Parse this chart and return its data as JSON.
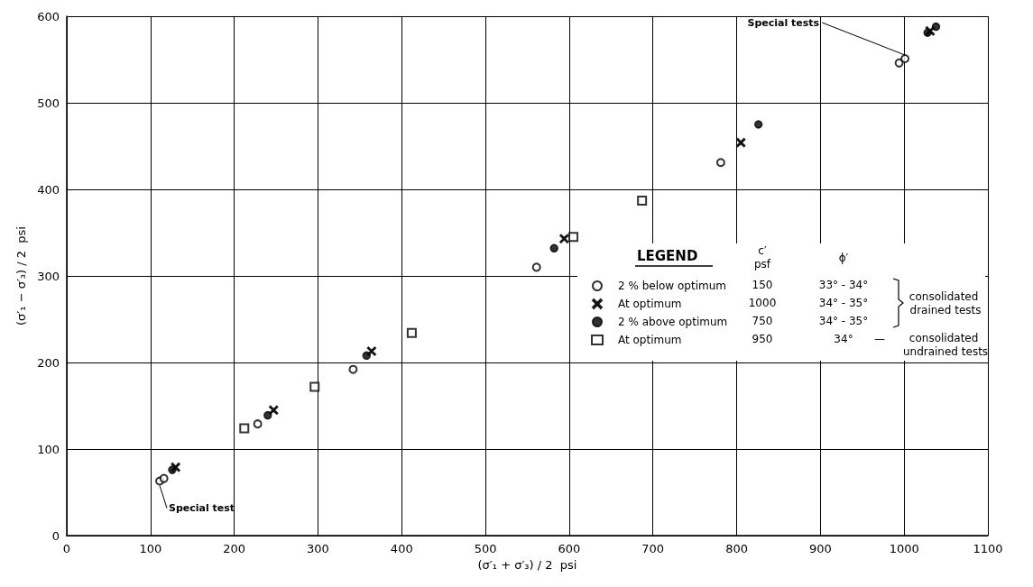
{
  "chart_data": {
    "type": "scatter",
    "xlabel": "(σ′₁ + σ′₃) / 2  psi",
    "ylabel": "(σ′₁ − σ′₃) / 2  psi",
    "legend_title": "LEGEND",
    "xlim": [
      0,
      1100
    ],
    "xticks": [
      0,
      100,
      200,
      300,
      400,
      500,
      600,
      700,
      800,
      900,
      1000,
      1100
    ],
    "ylim": [
      0,
      600
    ],
    "yticks": [
      0,
      100,
      200,
      300,
      400,
      500,
      600
    ],
    "grid": true,
    "legend": "right",
    "series": [
      {
        "name": "2 % below optimum",
        "color": "#000000",
        "marker": "circle-open",
        "x": [
          111,
          116,
          228,
          342,
          561,
          781,
          994,
          1001
        ],
        "values": [
          63,
          66,
          129,
          192,
          310,
          431,
          546,
          551
        ]
      },
      {
        "name": "At optimum",
        "color": "#000000",
        "marker": "cross",
        "x": [
          130,
          247,
          364,
          594,
          805,
          1031
        ],
        "values": [
          79,
          145,
          213,
          343,
          454,
          583
        ]
      },
      {
        "name": "2 % above optimum",
        "color": "#000000",
        "marker": "circle",
        "x": [
          126,
          240,
          358,
          582,
          826,
          1028,
          1038
        ],
        "values": [
          76,
          139,
          208,
          332,
          475,
          581,
          588
        ]
      },
      {
        "name": "At optimum",
        "color": "#000000",
        "marker": "square-open",
        "x": [
          212,
          296,
          412,
          605,
          687
        ],
        "values": [
          124,
          172,
          234,
          345,
          387
        ]
      }
    ],
    "annotations": [
      {
        "text": "Special test",
        "x": 111,
        "y": 63
      },
      {
        "text": "Special tests",
        "x": 1001,
        "y": 551
      },
      "c′",
      "psf",
      "ϕ′",
      "150",
      "33° - 34°",
      "1000",
      "34° - 35°",
      "750",
      "34° - 35°",
      "950",
      "34°",
      "—",
      "consolidated drained tests",
      "consolidated undrained tests"
    ]
  }
}
